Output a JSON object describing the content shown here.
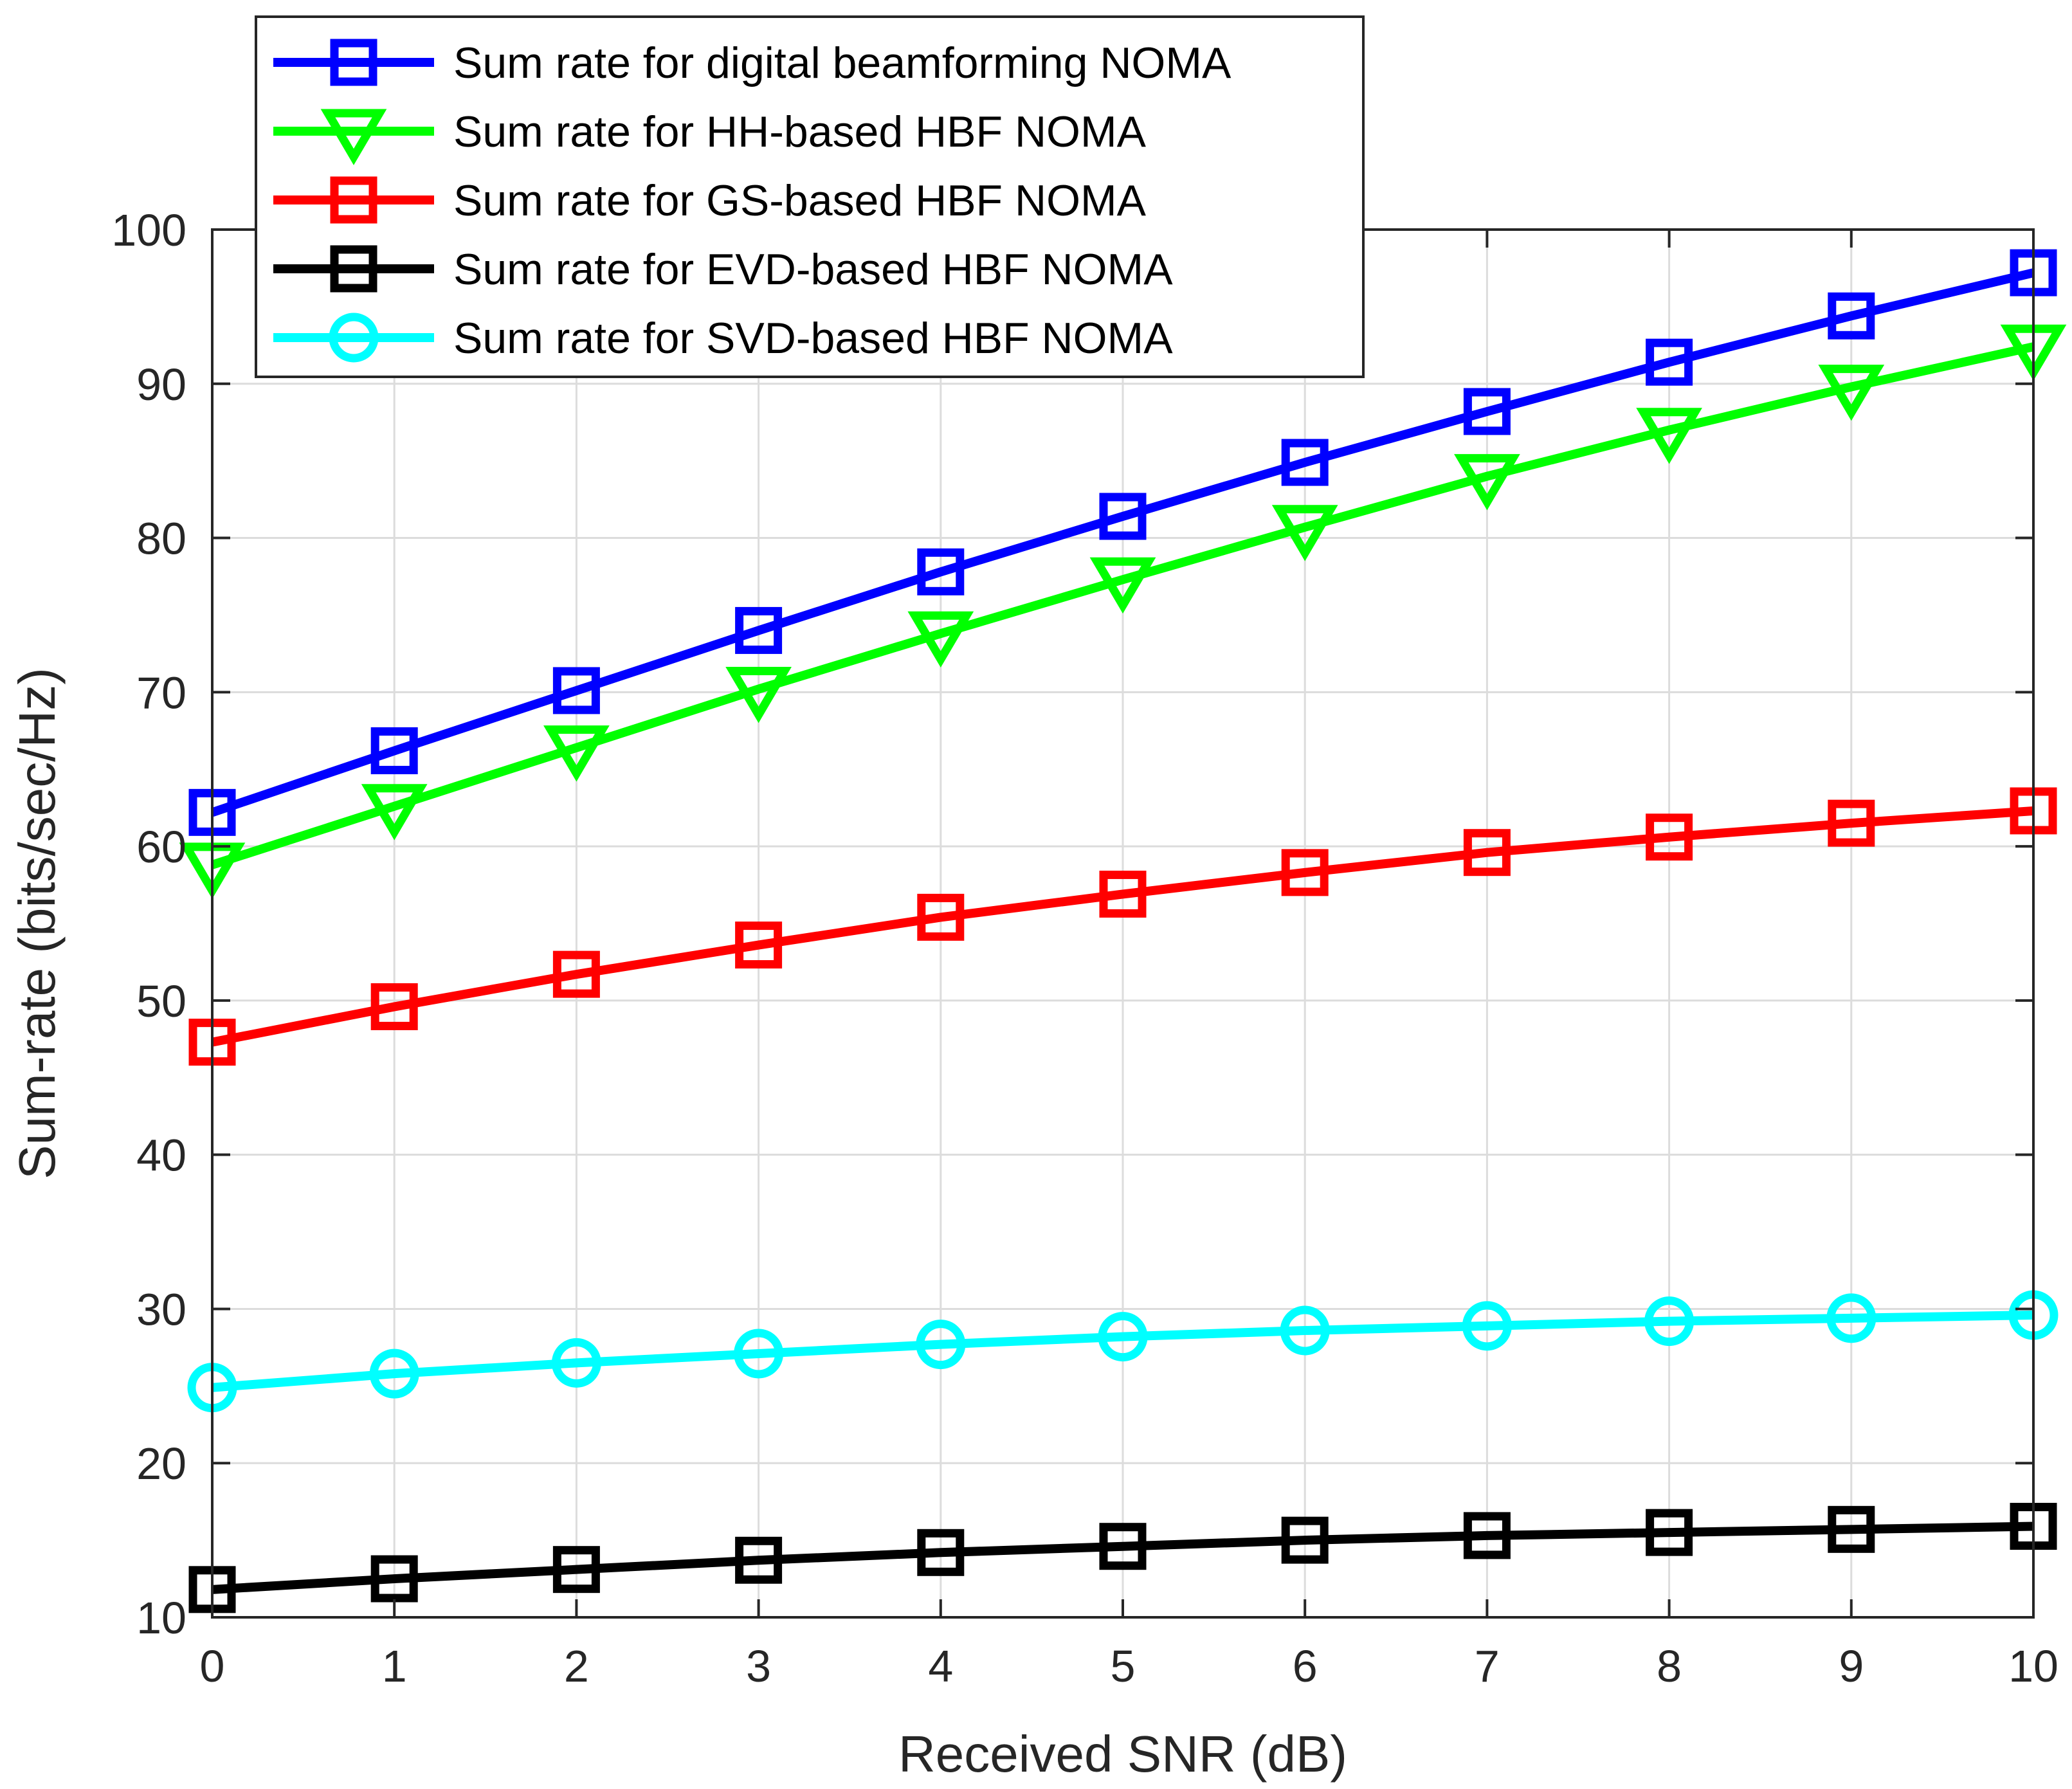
{
  "chart_data": {
    "type": "line",
    "title": "",
    "xlabel": "Received SNR (dB)",
    "ylabel": "Sum-rate (bits/sec/Hz)",
    "xlim": [
      0,
      10
    ],
    "ylim": [
      10,
      100
    ],
    "xticks": [
      0,
      1,
      2,
      3,
      4,
      5,
      6,
      7,
      8,
      9,
      10
    ],
    "yticks": [
      10,
      20,
      30,
      40,
      50,
      60,
      70,
      80,
      90,
      100
    ],
    "grid": true,
    "legend_position": "top-left",
    "x": [
      0,
      1,
      2,
      3,
      4,
      5,
      6,
      7,
      8,
      9,
      10
    ],
    "series": [
      {
        "name": "Sum rate for digital beamforming NOMA",
        "color": "#0000ff",
        "marker": "square",
        "values": [
          62.2,
          66.2,
          70.1,
          74.0,
          77.8,
          81.4,
          84.9,
          88.2,
          91.4,
          94.4,
          97.2
        ]
      },
      {
        "name": "Sum rate for HH-based HBF NOMA",
        "color": "#00ff00",
        "marker": "triangle-down",
        "values": [
          58.8,
          62.6,
          66.4,
          70.2,
          73.8,
          77.3,
          80.7,
          84.0,
          87.0,
          89.8,
          92.4
        ]
      },
      {
        "name": "Sum rate for GS-based HBF NOMA",
        "color": "#ff0000",
        "marker": "square",
        "values": [
          47.3,
          49.6,
          51.7,
          53.6,
          55.4,
          56.9,
          58.3,
          59.6,
          60.6,
          61.5,
          62.3
        ]
      },
      {
        "name": "Sum rate for EVD-based HBF NOMA",
        "color": "#000000",
        "marker": "square",
        "values": [
          11.8,
          12.5,
          13.1,
          13.7,
          14.2,
          14.6,
          15.0,
          15.3,
          15.5,
          15.7,
          15.9
        ]
      },
      {
        "name": "Sum rate for SVD-based HBF NOMA",
        "color": "#00ffff",
        "marker": "circle",
        "values": [
          24.9,
          25.8,
          26.5,
          27.1,
          27.7,
          28.2,
          28.6,
          28.9,
          29.2,
          29.4,
          29.6
        ]
      }
    ]
  }
}
